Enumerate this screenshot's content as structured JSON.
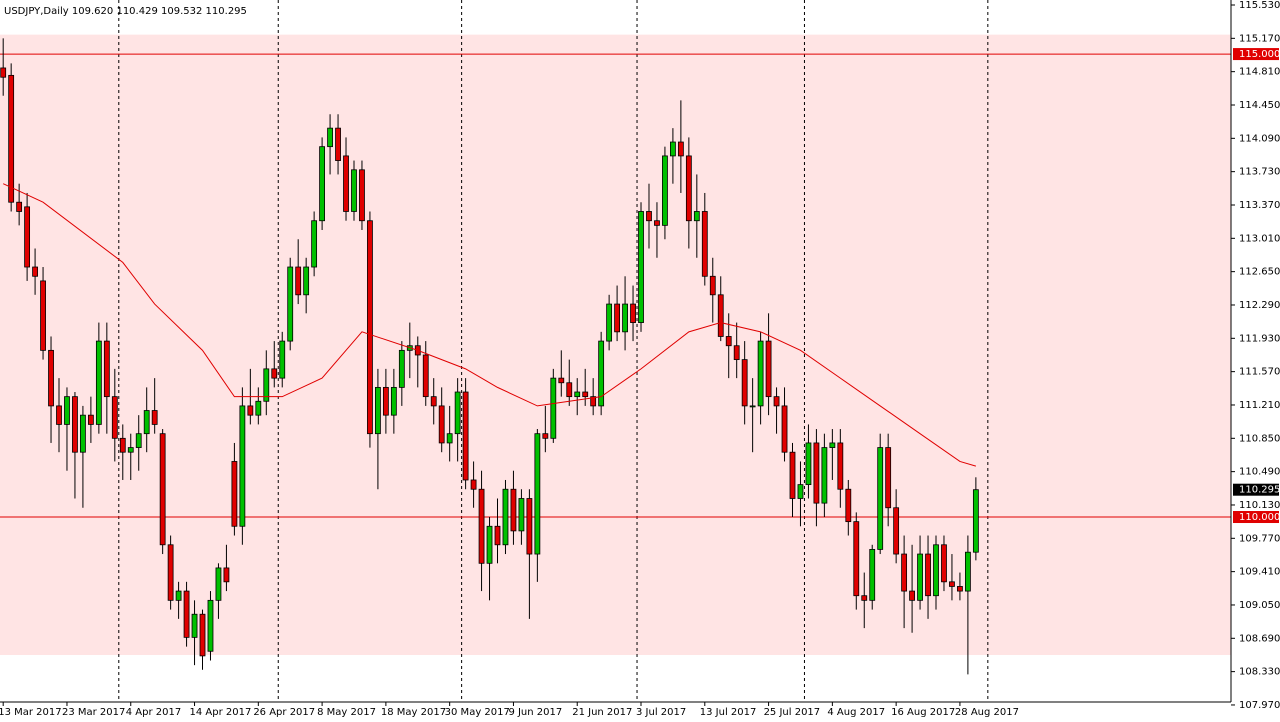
{
  "chart_data": {
    "type": "candlestick",
    "title": "USDJPY,Daily",
    "ohlc_labels": [
      "109.620",
      "110.429",
      "109.532",
      "110.295"
    ],
    "categories": [
      "13 Mar 2017",
      null,
      null,
      null,
      null,
      null,
      null,
      null,
      "23 Mar 2017",
      null,
      null,
      null,
      null,
      null,
      null,
      null,
      "4 Apr 2017",
      null,
      null,
      null,
      null,
      null,
      null,
      null,
      "14 Apr 2017",
      null,
      null,
      null,
      null,
      null,
      null,
      null,
      "26 Apr 2017",
      null,
      null,
      null,
      null,
      null,
      null,
      null,
      "8 May 2017",
      null,
      null,
      null,
      null,
      null,
      null,
      null,
      "18 May 2017",
      null,
      null,
      null,
      null,
      null,
      null,
      null,
      "30 May 2017",
      null,
      null,
      null,
      null,
      null,
      null,
      null,
      "9 Jun 2017",
      null,
      null,
      null,
      null,
      null,
      null,
      null,
      "21 Jun 2017",
      null,
      null,
      null,
      null,
      null,
      null,
      null,
      "3 Jul 2017",
      null,
      null,
      null,
      null,
      null,
      null,
      null,
      "13 Jul 2017",
      null,
      null,
      null,
      null,
      null,
      null,
      null,
      "25 Jul 2017",
      null,
      null,
      null,
      null,
      null,
      null,
      null,
      "4 Aug 2017",
      null,
      null,
      null,
      null,
      null,
      null,
      null,
      "16 Aug 2017",
      null,
      null,
      null,
      null,
      null,
      null,
      null,
      "28 Aug 2017",
      null,
      null
    ],
    "open": [
      114.85,
      114.77,
      113.4,
      113.35,
      112.7,
      112.55,
      111.8,
      111.2,
      111.0,
      111.3,
      110.7,
      111.1,
      111.0,
      111.9,
      111.3,
      110.85,
      110.7,
      110.75,
      110.9,
      111.15,
      110.9,
      109.7,
      109.1,
      109.2,
      108.7,
      108.95,
      108.55,
      109.1,
      109.45,
      110.6,
      109.9,
      111.2,
      111.1,
      111.25,
      111.6,
      111.5,
      111.9,
      112.7,
      112.4,
      112.7,
      113.2,
      114.0,
      114.2,
      113.9,
      113.3,
      113.75,
      113.2,
      110.9,
      111.4,
      111.1,
      111.4,
      111.8,
      111.85,
      111.75,
      111.3,
      111.2,
      110.8,
      110.9,
      111.35,
      110.4,
      110.3,
      109.5,
      109.9,
      109.7,
      110.3,
      109.85,
      110.2,
      109.6,
      110.9,
      110.85,
      111.5,
      111.45,
      111.3,
      111.35,
      111.3,
      111.2,
      111.9,
      112.3,
      112.0,
      112.3,
      112.1,
      113.3,
      113.2,
      113.15,
      113.9,
      114.05,
      113.9,
      113.2,
      113.3,
      112.6,
      112.4,
      111.95,
      111.85,
      111.7,
      111.2,
      111.2,
      111.9,
      111.3,
      111.2,
      110.7,
      110.2,
      110.35,
      110.8,
      110.15,
      110.75,
      110.8,
      110.3,
      109.95,
      109.15,
      109.1,
      109.65,
      110.75,
      110.1,
      109.6,
      109.2,
      109.1,
      109.6,
      109.15,
      109.7,
      109.3,
      109.25,
      109.2,
      109.62
    ],
    "high": [
      115.17,
      114.9,
      113.6,
      113.5,
      112.9,
      112.7,
      111.95,
      111.5,
      111.4,
      111.35,
      111.2,
      111.3,
      112.1,
      112.1,
      111.6,
      111.0,
      110.9,
      111.1,
      111.4,
      111.5,
      110.95,
      109.8,
      109.3,
      109.3,
      109.1,
      109.0,
      109.2,
      109.5,
      109.7,
      110.8,
      111.4,
      111.6,
      111.4,
      111.8,
      111.9,
      112.0,
      112.8,
      113.0,
      112.8,
      113.3,
      114.1,
      114.35,
      114.35,
      114.1,
      113.85,
      113.85,
      113.3,
      111.6,
      111.6,
      111.6,
      111.9,
      112.1,
      111.95,
      111.9,
      111.5,
      111.4,
      111.2,
      111.5,
      111.5,
      110.6,
      110.5,
      110.0,
      110.2,
      110.4,
      110.5,
      110.3,
      110.3,
      110.95,
      111.2,
      111.6,
      111.8,
      111.7,
      111.5,
      111.6,
      111.5,
      112.0,
      112.4,
      112.5,
      112.6,
      112.5,
      113.4,
      113.6,
      113.4,
      114.0,
      114.2,
      114.5,
      114.1,
      113.7,
      113.5,
      112.8,
      112.6,
      112.2,
      112.1,
      111.9,
      111.5,
      112.0,
      112.2,
      111.4,
      111.4,
      110.8,
      110.6,
      111.0,
      110.95,
      110.9,
      110.95,
      110.95,
      110.4,
      110.05,
      109.4,
      109.7,
      110.9,
      110.9,
      110.3,
      109.8,
      109.7,
      109.8,
      109.8,
      109.8,
      109.8,
      109.6,
      109.4,
      109.8,
      110.429
    ],
    "low": [
      114.55,
      113.3,
      113.15,
      112.55,
      112.4,
      111.7,
      110.8,
      110.7,
      110.5,
      110.2,
      110.1,
      110.8,
      110.9,
      110.9,
      110.6,
      110.4,
      110.4,
      110.5,
      110.7,
      110.9,
      109.6,
      109.0,
      108.9,
      108.6,
      108.4,
      108.35,
      108.45,
      108.9,
      109.2,
      109.8,
      109.7,
      111.0,
      111.0,
      111.1,
      111.4,
      111.4,
      111.8,
      112.3,
      112.2,
      112.6,
      113.1,
      113.7,
      113.7,
      113.2,
      113.2,
      113.1,
      110.75,
      110.3,
      110.9,
      110.9,
      111.2,
      111.5,
      111.4,
      111.2,
      111.0,
      110.7,
      110.6,
      110.6,
      110.3,
      110.1,
      109.2,
      109.1,
      109.5,
      109.6,
      109.7,
      109.7,
      108.9,
      109.3,
      110.7,
      110.8,
      111.3,
      111.2,
      111.1,
      111.2,
      111.1,
      111.1,
      111.8,
      111.9,
      111.8,
      111.9,
      112.0,
      112.9,
      112.8,
      113.0,
      113.6,
      113.5,
      112.9,
      112.8,
      112.5,
      112.1,
      111.9,
      111.5,
      111.5,
      111.0,
      110.7,
      111.0,
      111.1,
      110.9,
      110.6,
      110.0,
      109.9,
      110.2,
      109.9,
      110.0,
      110.4,
      110.1,
      109.8,
      109.0,
      108.8,
      109.0,
      109.6,
      109.9,
      109.5,
      108.8,
      108.75,
      109.0,
      108.9,
      109.0,
      109.2,
      109.1,
      109.1,
      108.3,
      109.532
    ],
    "close": [
      114.75,
      113.4,
      113.3,
      112.7,
      112.6,
      111.8,
      111.2,
      111.0,
      111.3,
      110.7,
      111.1,
      111.0,
      111.9,
      111.3,
      110.85,
      110.7,
      110.75,
      110.9,
      111.15,
      111.0,
      109.7,
      109.1,
      109.2,
      108.7,
      108.95,
      108.5,
      109.1,
      109.45,
      109.3,
      109.9,
      111.2,
      111.1,
      111.25,
      111.6,
      111.5,
      111.9,
      112.7,
      112.4,
      112.7,
      113.2,
      114.0,
      114.2,
      113.85,
      113.3,
      113.75,
      113.2,
      110.9,
      111.4,
      111.1,
      111.4,
      111.8,
      111.85,
      111.75,
      111.3,
      111.2,
      110.8,
      110.9,
      111.35,
      110.4,
      110.3,
      109.5,
      109.9,
      109.7,
      110.3,
      109.85,
      110.2,
      109.6,
      110.9,
      110.85,
      111.5,
      111.45,
      111.3,
      111.35,
      111.3,
      111.2,
      111.9,
      112.3,
      112.0,
      112.3,
      112.1,
      113.3,
      113.2,
      113.15,
      113.9,
      114.05,
      113.9,
      113.2,
      113.3,
      112.6,
      112.4,
      111.95,
      111.85,
      111.7,
      111.2,
      111.2,
      111.9,
      111.3,
      111.2,
      110.7,
      110.2,
      110.35,
      110.8,
      110.15,
      110.75,
      110.8,
      110.3,
      109.95,
      109.15,
      109.1,
      109.65,
      110.75,
      110.1,
      109.6,
      109.2,
      109.1,
      109.6,
      109.15,
      109.7,
      109.3,
      109.25,
      109.2,
      109.62,
      110.295
    ],
    "up_color": "#00c000",
    "down_color": "#e00000",
    "ma": {
      "color": "#e00000",
      "x": [
        0,
        5,
        15,
        19,
        25,
        29,
        35,
        40,
        43,
        45,
        52,
        58,
        62,
        67,
        75,
        80,
        86,
        90,
        95,
        100,
        105,
        110,
        115,
        120,
        122
      ],
      "values": [
        113.6,
        113.4,
        112.75,
        112.3,
        111.8,
        111.3,
        111.3,
        111.5,
        111.8,
        112.0,
        111.8,
        111.6,
        111.4,
        111.2,
        111.3,
        111.6,
        112.0,
        112.1,
        112.0,
        111.8,
        111.5,
        111.2,
        110.9,
        110.6,
        110.55
      ]
    },
    "hlines": [
      {
        "value": 115,
        "label": "115.000"
      },
      {
        "value": 110,
        "label": "110.000"
      }
    ],
    "hline_color": "#e00000",
    "zone": [
      108.51,
      115.21
    ],
    "zone_color": "#ffe4e4",
    "xlim": [
      -0.4,
      154
    ],
    "xgrid": [
      14.5,
      34.5,
      57.5,
      79.5,
      100.5,
      123.5
    ],
    "ylim": [
      108.002,
      115.584
    ],
    "yticks": [
      {
        "value": 115.53,
        "label": "115.530"
      },
      {
        "value": 115.17,
        "label": "115.170"
      },
      {
        "value": 114.81,
        "label": "114.810"
      },
      {
        "value": 114.45,
        "label": "114.450"
      },
      {
        "value": 114.09,
        "label": "114.090"
      },
      {
        "value": 113.73,
        "label": "113.730"
      },
      {
        "value": 113.37,
        "label": "113.370"
      },
      {
        "value": 113.01,
        "label": "113.010"
      },
      {
        "value": 112.65,
        "label": "112.650"
      },
      {
        "value": 112.29,
        "label": "112.290"
      },
      {
        "value": 111.93,
        "label": "111.930"
      },
      {
        "value": 111.57,
        "label": "111.570"
      },
      {
        "value": 111.21,
        "label": "111.210"
      },
      {
        "value": 110.85,
        "label": "110.850"
      },
      {
        "value": 110.49,
        "label": "110.490"
      },
      {
        "value": 110.13,
        "label": "110.130"
      },
      {
        "value": 109.77,
        "label": "109.770"
      },
      {
        "value": 109.41,
        "label": "109.410"
      },
      {
        "value": 109.05,
        "label": "109.050"
      },
      {
        "value": 108.69,
        "label": "108.690"
      },
      {
        "value": 108.33,
        "label": "108.330"
      },
      {
        "value": 107.97,
        "label": "107.970"
      }
    ]
  }
}
